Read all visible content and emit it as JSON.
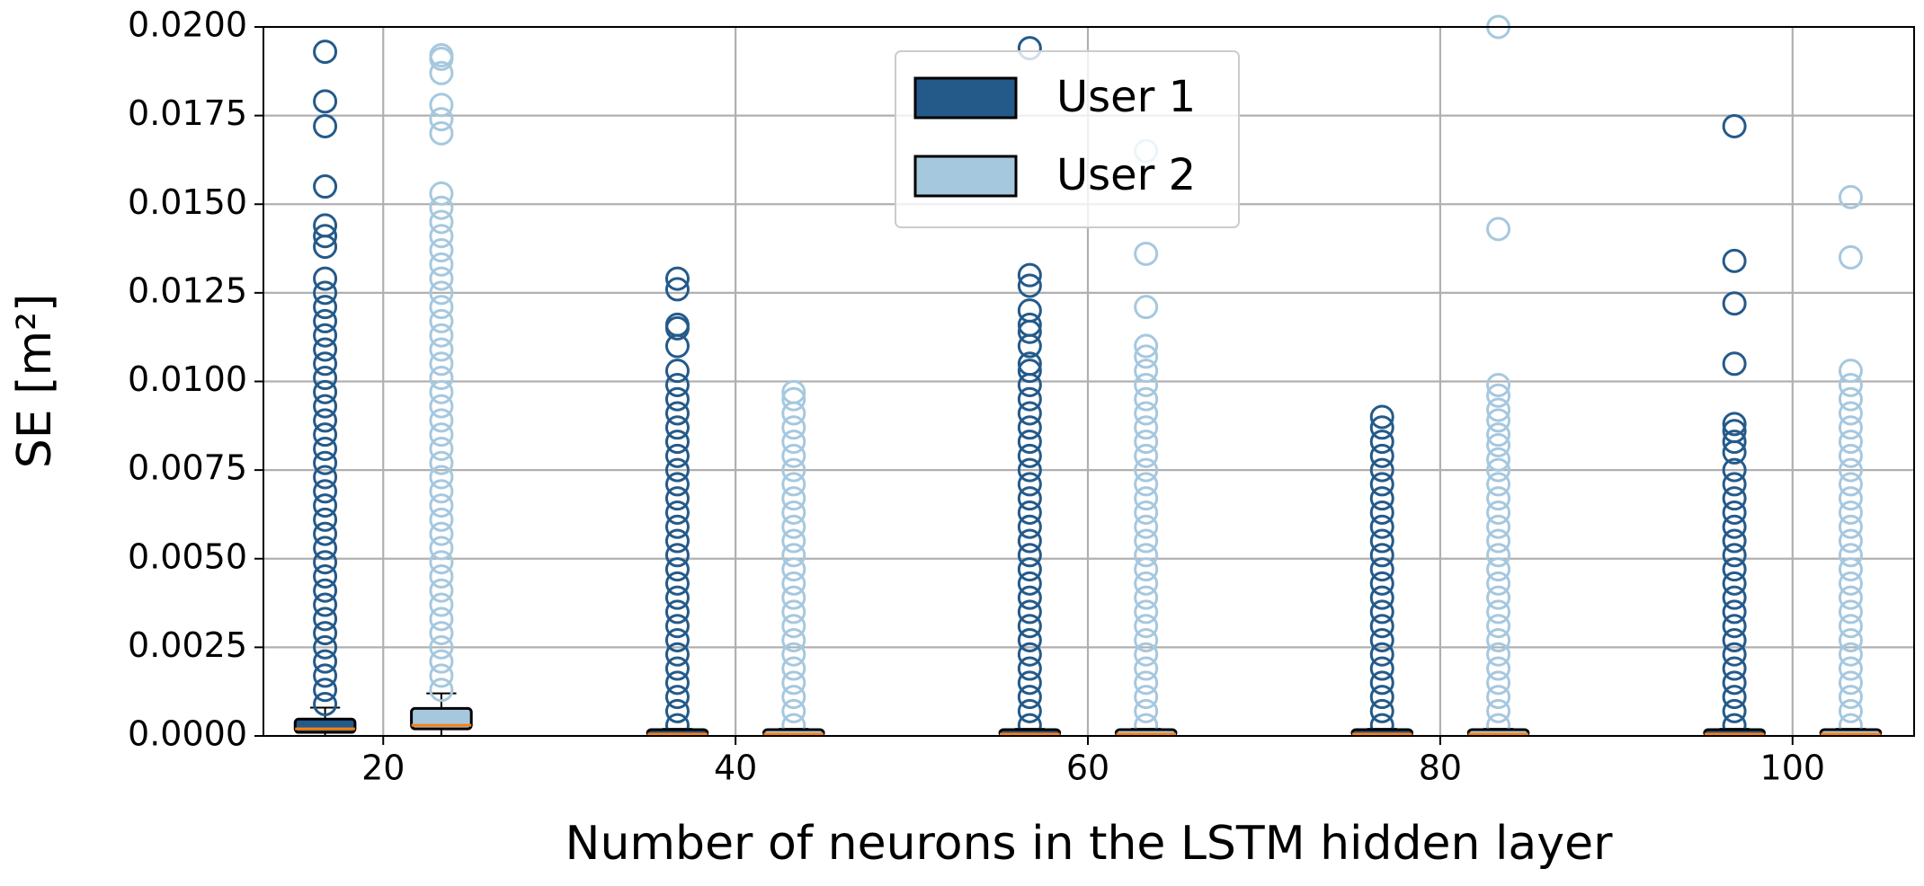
{
  "chart_data": {
    "type": "boxplot",
    "xlabel": "Number of neurons in the LSTM hidden layer",
    "ylabel": "SE [m²]",
    "xlim": [
      13.2,
      106.9
    ],
    "ylim": [
      0,
      0.02
    ],
    "xticks": [
      20,
      40,
      60,
      80,
      100
    ],
    "yticks": [
      {
        "value": 0,
        "label": "0.0000"
      },
      {
        "value": 0.0025,
        "label": "0.0025"
      },
      {
        "value": 0.005,
        "label": "0.0050"
      },
      {
        "value": 0.0075,
        "label": "0.0075"
      },
      {
        "value": 0.01,
        "label": "0.0100"
      },
      {
        "value": 0.0125,
        "label": "0.0125"
      },
      {
        "value": 0.015,
        "label": "0.0150"
      },
      {
        "value": 0.0175,
        "label": "0.0175"
      },
      {
        "value": 0.02,
        "label": "0.0200"
      }
    ],
    "grid": true,
    "legend": "upper center",
    "median_color": "#ff7f0e",
    "series": [
      {
        "name": "User 1",
        "color": "#245a8a",
        "boxes": [
          {
            "x": 16.7,
            "whislo": 0,
            "q1": 0.0001,
            "med": 0.0002,
            "q3": 0.0004,
            "whishi": 0.0008,
            "outliers": [
              0.0009,
              0.0013,
              0.0017,
              0.0021,
              0.0025,
              0.0029,
              0.0033,
              0.0037,
              0.0041,
              0.0045,
              0.0049,
              0.0053,
              0.0057,
              0.0061,
              0.0065,
              0.0069,
              0.0073,
              0.0077,
              0.0081,
              0.0085,
              0.0089,
              0.0093,
              0.0097,
              0.0101,
              0.0105,
              0.0109,
              0.0113,
              0.0117,
              0.0121,
              0.0125,
              0.0129,
              0.0138,
              0.0141,
              0.0144,
              0.0155,
              0.0172,
              0.0179,
              0.0193
            ]
          },
          {
            "x": 36.7,
            "whislo": 0,
            "q1": 0,
            "med": 5e-05,
            "q3": 0.0001,
            "whishi": 0.0002,
            "outliers": [
              0.0003,
              0.0007,
              0.0011,
              0.0015,
              0.0019,
              0.0023,
              0.0027,
              0.0031,
              0.0035,
              0.0039,
              0.0043,
              0.0047,
              0.0051,
              0.0055,
              0.0059,
              0.0063,
              0.0067,
              0.0071,
              0.0075,
              0.0079,
              0.0083,
              0.0087,
              0.0091,
              0.0095,
              0.0099,
              0.0103,
              0.011,
              0.0115,
              0.0116,
              0.0126,
              0.0129
            ]
          },
          {
            "x": 56.7,
            "whislo": 0,
            "q1": 0,
            "med": 5e-05,
            "q3": 0.0001,
            "whishi": 0.0002,
            "outliers": [
              0.0003,
              0.0007,
              0.0011,
              0.0015,
              0.0019,
              0.0023,
              0.0027,
              0.0031,
              0.0035,
              0.0039,
              0.0043,
              0.0047,
              0.0051,
              0.0055,
              0.0059,
              0.0063,
              0.0067,
              0.0071,
              0.0075,
              0.0079,
              0.0083,
              0.0087,
              0.0091,
              0.0095,
              0.0099,
              0.0103,
              0.0105,
              0.011,
              0.0114,
              0.0116,
              0.012,
              0.0127,
              0.013,
              0.0194
            ]
          },
          {
            "x": 76.7,
            "whislo": 0,
            "q1": 0,
            "med": 5e-05,
            "q3": 0.0001,
            "whishi": 0.0002,
            "outliers": [
              0.0003,
              0.0007,
              0.0011,
              0.0015,
              0.0019,
              0.0023,
              0.0027,
              0.0031,
              0.0035,
              0.0039,
              0.0043,
              0.0047,
              0.0051,
              0.0055,
              0.0059,
              0.0063,
              0.0067,
              0.0071,
              0.0075,
              0.0079,
              0.0083,
              0.0087,
              0.009
            ]
          },
          {
            "x": 96.7,
            "whislo": 0,
            "q1": 0,
            "med": 5e-05,
            "q3": 0.0001,
            "whishi": 0.0002,
            "outliers": [
              0.0003,
              0.0007,
              0.0011,
              0.0015,
              0.0019,
              0.0023,
              0.0027,
              0.0031,
              0.0035,
              0.0039,
              0.0043,
              0.0047,
              0.0051,
              0.0055,
              0.0059,
              0.0063,
              0.0067,
              0.0071,
              0.0075,
              0.008,
              0.0083,
              0.0086,
              0.0088,
              0.0105,
              0.0122,
              0.0134,
              0.0172
            ]
          }
        ]
      },
      {
        "name": "User 2",
        "color": "#a6c8df",
        "boxes": [
          {
            "x": 23.3,
            "whislo": 0,
            "q1": 0.0002,
            "med": 0.0003,
            "q3": 0.0007,
            "whishi": 0.0012,
            "outliers": [
              0.0013,
              0.0017,
              0.0021,
              0.0025,
              0.0029,
              0.0033,
              0.0037,
              0.0041,
              0.0045,
              0.0049,
              0.0053,
              0.0057,
              0.0061,
              0.0065,
              0.0069,
              0.0073,
              0.0077,
              0.0081,
              0.0085,
              0.0089,
              0.0093,
              0.0097,
              0.0101,
              0.0105,
              0.0109,
              0.0113,
              0.0117,
              0.0121,
              0.0125,
              0.0129,
              0.0133,
              0.0137,
              0.0141,
              0.0145,
              0.0149,
              0.0153,
              0.017,
              0.0174,
              0.0178,
              0.0187,
              0.0191,
              0.0192
            ]
          },
          {
            "x": 43.3,
            "whislo": 0,
            "q1": 0,
            "med": 5e-05,
            "q3": 0.0001,
            "whishi": 0.0002,
            "outliers": [
              0.0003,
              0.0007,
              0.0011,
              0.0015,
              0.0019,
              0.0023,
              0.0027,
              0.0031,
              0.0035,
              0.0039,
              0.0043,
              0.0047,
              0.0051,
              0.0055,
              0.0059,
              0.0063,
              0.0067,
              0.0071,
              0.0075,
              0.0079,
              0.0083,
              0.0087,
              0.0091,
              0.0095,
              0.0097
            ]
          },
          {
            "x": 63.3,
            "whislo": 0,
            "q1": 0,
            "med": 5e-05,
            "q3": 0.0001,
            "whishi": 0.0002,
            "outliers": [
              0.0003,
              0.0007,
              0.0011,
              0.0015,
              0.0019,
              0.0023,
              0.0027,
              0.0031,
              0.0035,
              0.0039,
              0.0043,
              0.0047,
              0.0051,
              0.0055,
              0.0059,
              0.0063,
              0.0067,
              0.0071,
              0.0075,
              0.0079,
              0.0083,
              0.0087,
              0.0091,
              0.0095,
              0.0099,
              0.0103,
              0.0107,
              0.011,
              0.0121,
              0.0136,
              0.0165
            ]
          },
          {
            "x": 83.3,
            "whislo": 0,
            "q1": 0,
            "med": 5e-05,
            "q3": 0.0001,
            "whishi": 0.0002,
            "outliers": [
              0.0003,
              0.0007,
              0.0011,
              0.0015,
              0.0019,
              0.0023,
              0.0027,
              0.0031,
              0.0035,
              0.0039,
              0.0043,
              0.0047,
              0.0051,
              0.0055,
              0.0059,
              0.0063,
              0.0067,
              0.0071,
              0.0075,
              0.0078,
              0.0082,
              0.0085,
              0.0089,
              0.0092,
              0.0096,
              0.0099,
              0.0143,
              0.02
            ]
          },
          {
            "x": 103.3,
            "whislo": 0,
            "q1": 0,
            "med": 5e-05,
            "q3": 0.0001,
            "whishi": 0.0002,
            "outliers": [
              0.0003,
              0.0007,
              0.0011,
              0.0015,
              0.0019,
              0.0023,
              0.0027,
              0.0031,
              0.0035,
              0.0039,
              0.0043,
              0.0047,
              0.0051,
              0.0055,
              0.0059,
              0.0063,
              0.0067,
              0.0071,
              0.0075,
              0.0079,
              0.0083,
              0.0087,
              0.0091,
              0.0095,
              0.0099,
              0.0103,
              0.0135,
              0.0152
            ]
          }
        ]
      }
    ]
  }
}
